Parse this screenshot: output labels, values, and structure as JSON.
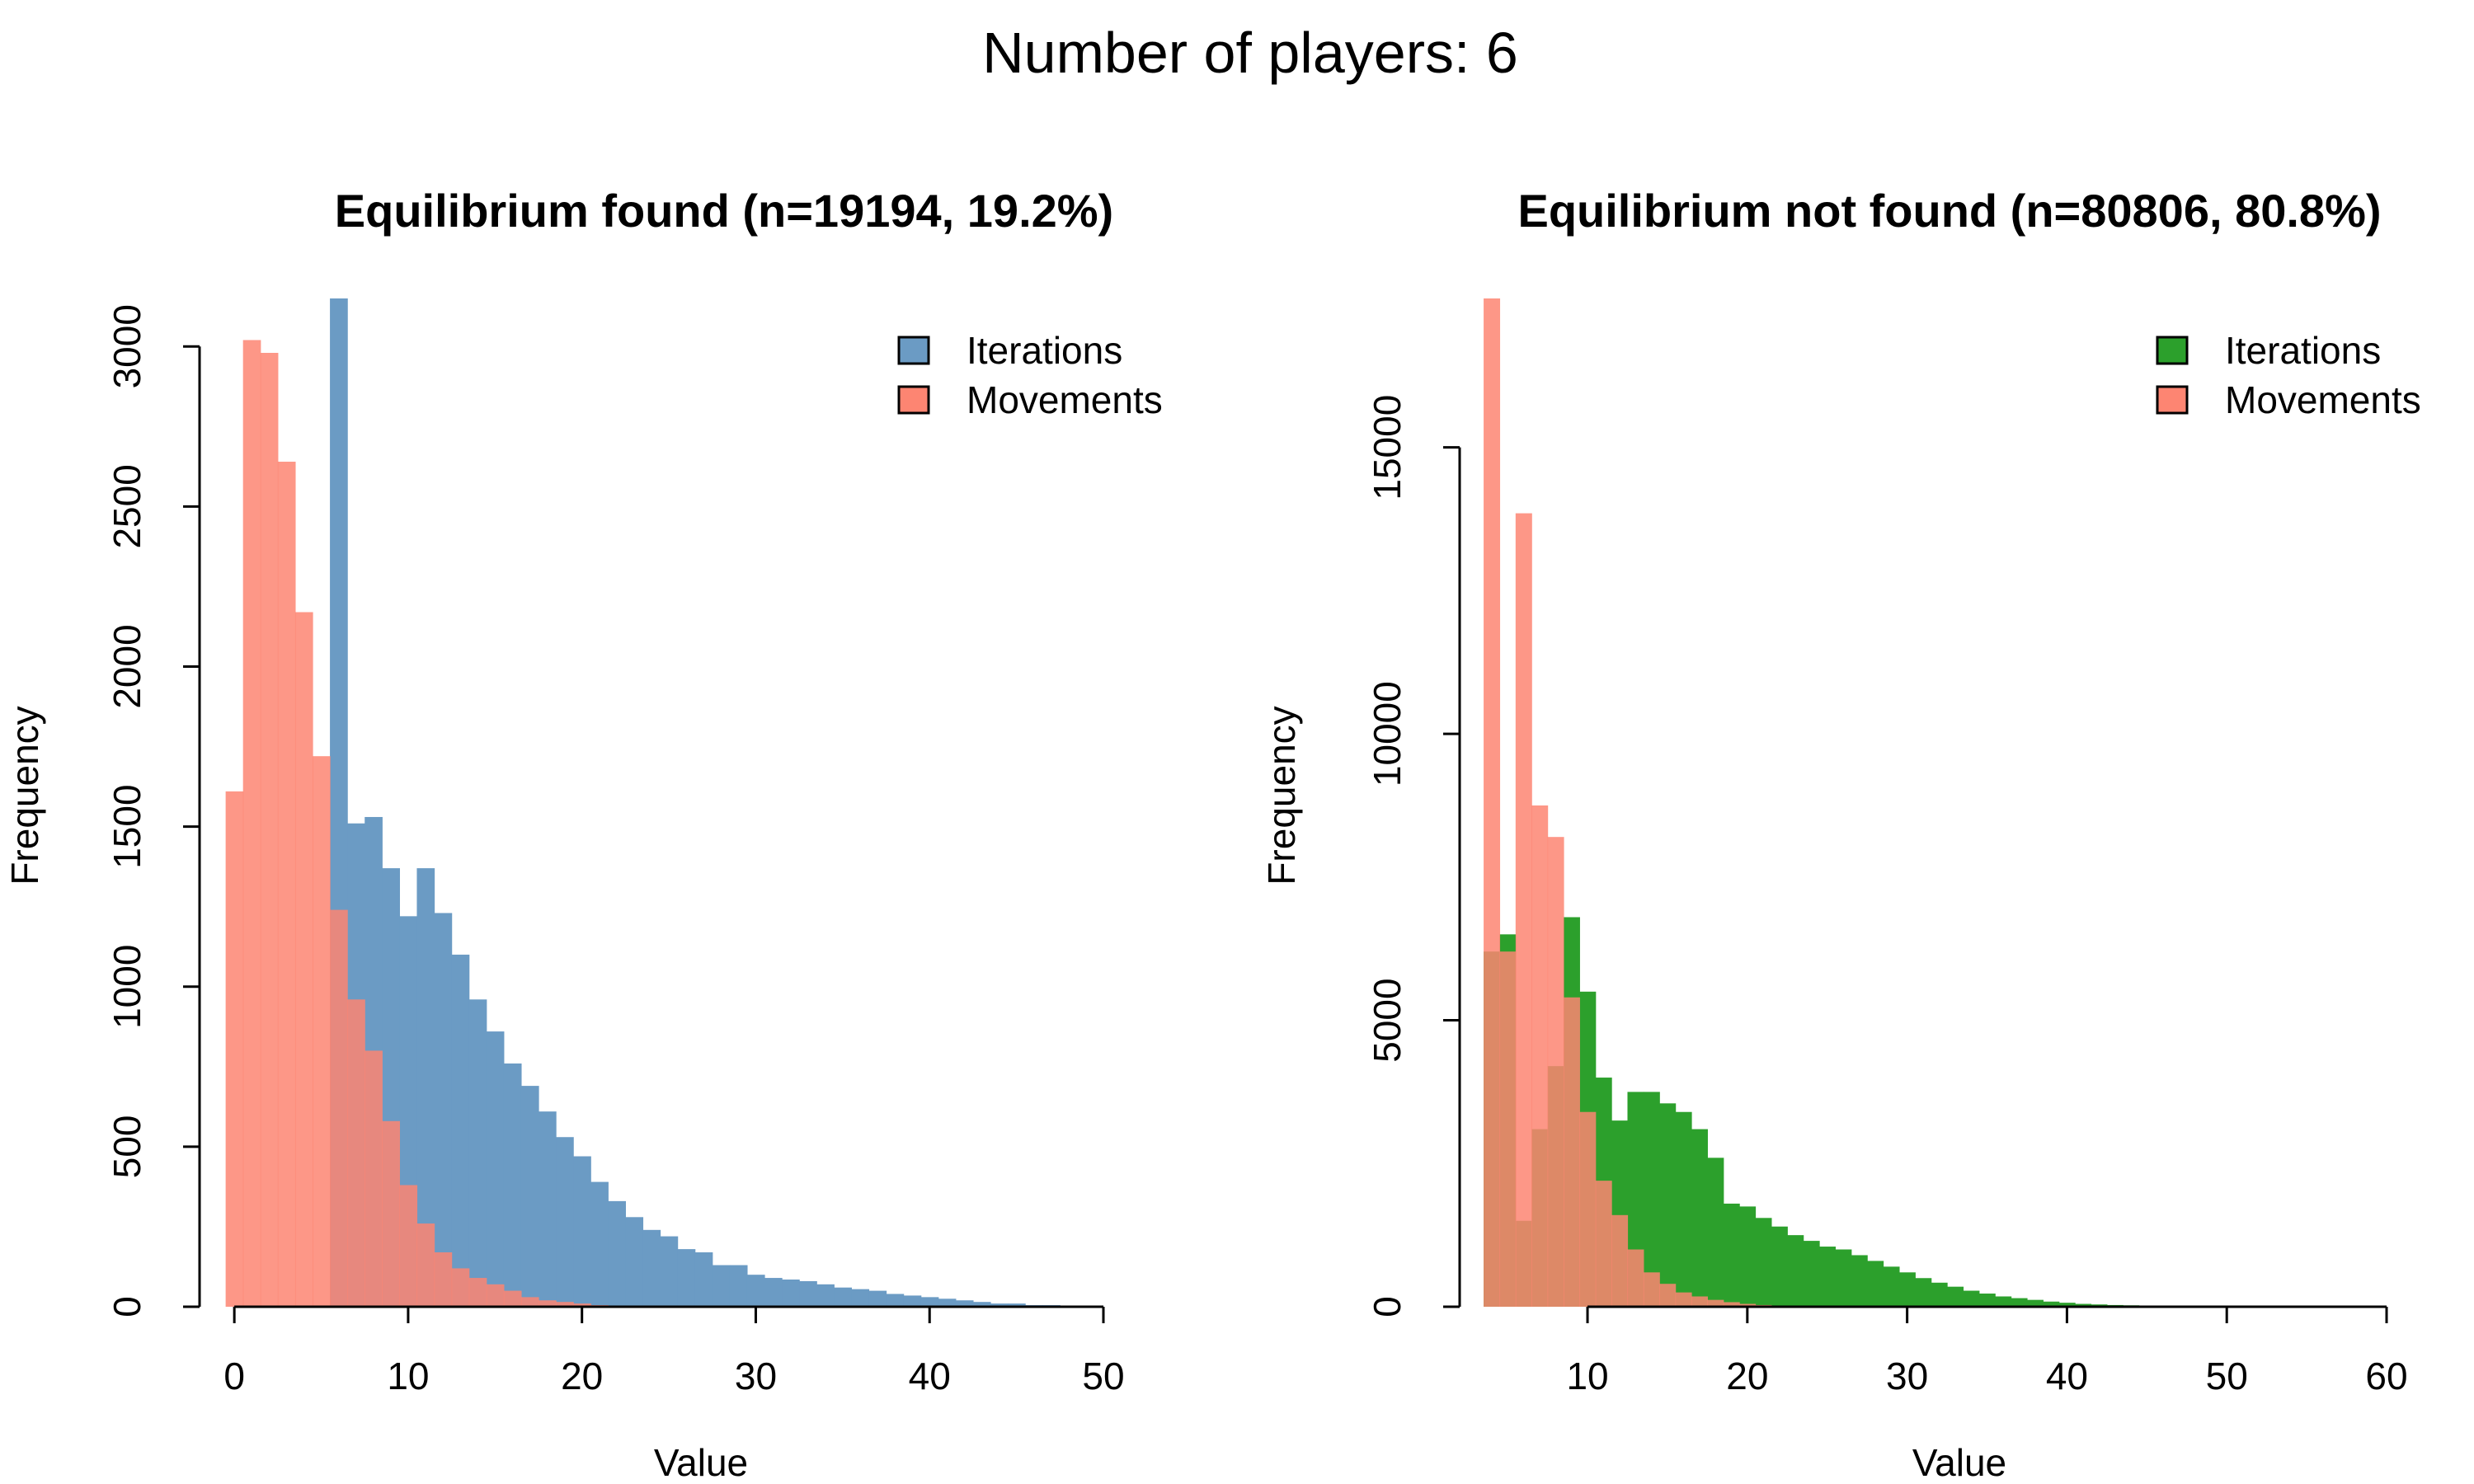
{
  "figure_title": "Number of players: 6",
  "chart_data": [
    {
      "type": "bar",
      "title": "Equilibrium found (n=19194, 19.2%)",
      "xlabel": "Value",
      "ylabel": "Frequency",
      "xlim": [
        -2,
        50
      ],
      "ylim": [
        0,
        3150
      ],
      "x_ticks": [
        0,
        10,
        20,
        30,
        40,
        50
      ],
      "y_ticks": [
        0,
        500,
        1000,
        1500,
        2000,
        2500,
        3000
      ],
      "legend": {
        "position": "top-right",
        "entries": [
          {
            "label": "Iterations",
            "color": "#6b9bc4"
          },
          {
            "label": "Movements",
            "color": "#fd8572"
          }
        ]
      },
      "series": [
        {
          "name": "Iterations",
          "color": "#6b9bc4",
          "bin_start": 5.5,
          "bin_width": 1,
          "values": [
            3150,
            1510,
            1530,
            1370,
            1220,
            1370,
            1230,
            1100,
            960,
            860,
            760,
            690,
            610,
            530,
            470,
            390,
            330,
            280,
            240,
            220,
            180,
            170,
            130,
            130,
            100,
            90,
            85,
            80,
            70,
            60,
            55,
            50,
            40,
            35,
            30,
            25,
            20,
            15,
            10,
            10,
            5,
            5
          ]
        },
        {
          "name": "Movements",
          "color": "#fd8572",
          "bin_start": -0.5,
          "bin_width": 1,
          "values": [
            1610,
            3020,
            2980,
            2640,
            2170,
            1720,
            1240,
            960,
            800,
            580,
            380,
            260,
            170,
            120,
            90,
            70,
            50,
            30,
            20,
            15,
            10,
            5
          ]
        }
      ]
    },
    {
      "type": "bar",
      "title": "Equilibrium not found (n=80806, 80.8%)",
      "xlabel": "Value",
      "ylabel": "Frequency",
      "xlim": [
        2,
        60
      ],
      "ylim": [
        0,
        17600
      ],
      "x_ticks": [
        10,
        20,
        30,
        40,
        50,
        60
      ],
      "y_ticks": [
        0,
        5000,
        10000,
        15000
      ],
      "legend": {
        "position": "top-right",
        "entries": [
          {
            "label": "Iterations",
            "color": "#2ca02c"
          },
          {
            "label": "Movements",
            "color": "#fd8572"
          }
        ]
      },
      "series": [
        {
          "name": "Iterations",
          "color": "#2ca02c",
          "bin_start": 3.5,
          "bin_width": 1,
          "values": [
            6200,
            6500,
            1500,
            3100,
            4200,
            6800,
            5500,
            4000,
            3250,
            3750,
            3750,
            3550,
            3400,
            3100,
            2600,
            1800,
            1750,
            1550,
            1400,
            1250,
            1150,
            1050,
            1000,
            900,
            800,
            700,
            600,
            500,
            420,
            350,
            280,
            230,
            180,
            150,
            120,
            90,
            70,
            50,
            40,
            30,
            25,
            20,
            15,
            10
          ]
        },
        {
          "name": "Movements",
          "color": "#fd8572",
          "bin_start": 3.5,
          "bin_width": 1,
          "values": [
            17600,
            6200,
            13850,
            8750,
            8200,
            5400,
            3400,
            2200,
            1600,
            1000,
            600,
            400,
            250,
            180,
            120,
            80,
            50,
            30,
            20,
            10
          ]
        }
      ]
    }
  ]
}
